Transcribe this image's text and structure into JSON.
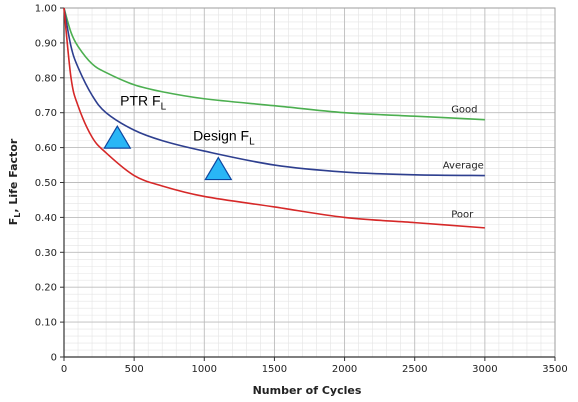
{
  "chart_data": {
    "type": "line",
    "xlabel": "Number of Cycles",
    "ylabel": "F",
    "ylabel_sub": "L",
    "ylabel_rest": ", Life Factor",
    "xlim": [
      0,
      3500
    ],
    "ylim": [
      0,
      1.0
    ],
    "xticks": [
      0,
      500,
      1000,
      1500,
      2000,
      2500,
      3000,
      3500
    ],
    "xtick_labels": [
      "0",
      "500",
      "1000",
      "1500",
      "2000",
      "2500",
      "3000",
      "3500"
    ],
    "yticks": [
      0,
      0.1,
      0.2,
      0.3,
      0.4,
      0.5,
      0.6,
      0.7,
      0.8,
      0.9,
      1.0
    ],
    "ytick_labels": [
      "0",
      "0.10",
      "0.20",
      "0.30",
      "0.40",
      "0.50",
      "0.60",
      "0.70",
      "0.80",
      "0.90",
      "1.00"
    ],
    "grid": true,
    "series": [
      {
        "name": "Good",
        "color": "#4caf50",
        "x": [
          0,
          50,
          100,
          200,
          300,
          500,
          700,
          1000,
          1500,
          2000,
          2500,
          3000
        ],
        "y": [
          1.0,
          0.93,
          0.89,
          0.84,
          0.815,
          0.78,
          0.76,
          0.74,
          0.72,
          0.7,
          0.69,
          0.68
        ]
      },
      {
        "name": "Average",
        "color": "#2e3f8f",
        "x": [
          0,
          50,
          100,
          200,
          300,
          500,
          700,
          1000,
          1500,
          2000,
          2500,
          3000
        ],
        "y": [
          1.0,
          0.89,
          0.83,
          0.75,
          0.7,
          0.65,
          0.62,
          0.59,
          0.55,
          0.53,
          0.522,
          0.52
        ]
      },
      {
        "name": "Poor",
        "color": "#d62828",
        "x": [
          0,
          50,
          100,
          200,
          300,
          500,
          700,
          1000,
          1500,
          2000,
          2500,
          3000
        ],
        "y": [
          1.0,
          0.8,
          0.72,
          0.63,
          0.585,
          0.52,
          0.49,
          0.46,
          0.43,
          0.4,
          0.385,
          0.37
        ]
      }
    ],
    "annotations": [
      {
        "text": "PTR F",
        "sub": "L",
        "x": 380,
        "y": 0.63,
        "marker": "triangle",
        "color": "#29b6f6",
        "label_x": 400,
        "label_y": 0.72
      },
      {
        "text": "Design F",
        "sub": "L",
        "x": 1100,
        "y": 0.54,
        "marker": "triangle",
        "color": "#29b6f6",
        "label_x": 920,
        "label_y": 0.62
      }
    ],
    "curve_labels": [
      {
        "text": "Good",
        "x": 2760,
        "y": 0.7
      },
      {
        "text": "Average",
        "x": 2700,
        "y": 0.54
      },
      {
        "text": "Poor",
        "x": 2760,
        "y": 0.4
      }
    ]
  }
}
